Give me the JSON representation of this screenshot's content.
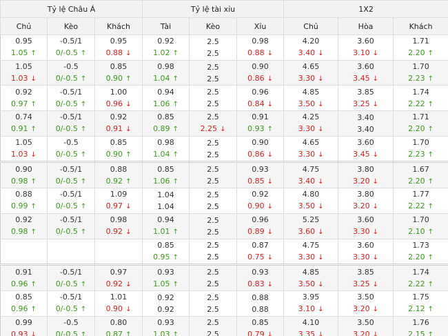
{
  "header": {
    "groups": [
      "Tỷ lệ Châu Á",
      "Tỷ lệ tài xỉu",
      "1X2"
    ],
    "columns": [
      "Chủ",
      "Kèo",
      "Khách",
      "Tài",
      "Kèo",
      "Xỉu",
      "Chủ",
      "Hòa",
      "Khách"
    ]
  },
  "rows": [
    [
      {
        "top": "0.95",
        "bottom": "1.05",
        "trend": "up"
      },
      {
        "top": "-0.5/1",
        "bottom": "0/-0.5",
        "trend": "up"
      },
      {
        "top": "0.95",
        "bottom": "0.88",
        "trend": "down"
      },
      {
        "top": "0.92",
        "bottom": "1.02",
        "trend": "up"
      },
      {
        "top": "2.5",
        "bottom": "2.5"
      },
      {
        "top": "0.98",
        "bottom": "0.88",
        "trend": "down"
      },
      {
        "top": "4.20",
        "bottom": "3.40",
        "trend": "down"
      },
      {
        "top": "3.60",
        "bottom": "3.10",
        "trend": "down"
      },
      {
        "top": "1.71",
        "bottom": "2.20",
        "trend": "up"
      }
    ],
    [
      {
        "top": "1.05",
        "bottom": "1.03",
        "trend": "down"
      },
      {
        "top": "-0.5",
        "bottom": "0/-0.5",
        "trend": "up"
      },
      {
        "top": "0.85",
        "bottom": "0.90",
        "trend": "up"
      },
      {
        "top": "0.98",
        "bottom": "1.04",
        "trend": "up"
      },
      {
        "top": "2.5",
        "bottom": "2.5"
      },
      {
        "top": "0.90",
        "bottom": "0.86",
        "trend": "down"
      },
      {
        "top": "4.65",
        "bottom": "3.30",
        "trend": "down"
      },
      {
        "top": "3.60",
        "bottom": "3.45",
        "trend": "down"
      },
      {
        "top": "1.70",
        "bottom": "2.23",
        "trend": "up"
      }
    ],
    [
      {
        "top": "0.92",
        "bottom": "0.97",
        "trend": "up"
      },
      {
        "top": "-0.5/1",
        "bottom": "0/-0.5",
        "trend": "up"
      },
      {
        "top": "1.00",
        "bottom": "0.96",
        "trend": "down"
      },
      {
        "top": "0.94",
        "bottom": "1.06",
        "trend": "up"
      },
      {
        "top": "2.5",
        "bottom": "2.5"
      },
      {
        "top": "0.96",
        "bottom": "0.84",
        "trend": "down"
      },
      {
        "top": "4.85",
        "bottom": "3.50",
        "trend": "down"
      },
      {
        "top": "3.85",
        "bottom": "3.25",
        "trend": "down"
      },
      {
        "top": "1.74",
        "bottom": "2.22",
        "trend": "up"
      }
    ],
    [
      {
        "top": "0.74",
        "bottom": "0.91",
        "trend": "up"
      },
      {
        "top": "-0.5/1",
        "bottom": "0/-0.5",
        "trend": "up"
      },
      {
        "top": "0.92",
        "bottom": "0.91",
        "trend": "down"
      },
      {
        "top": "0.85",
        "bottom": "0.89",
        "trend": "up"
      },
      {
        "top": "2.5",
        "bottom": "2.25",
        "trend": "down"
      },
      {
        "top": "0.91",
        "bottom": "0.93",
        "trend": "up"
      },
      {
        "top": "4.25",
        "bottom": "3.30",
        "trend": "down"
      },
      {
        "top": "3.40",
        "bottom": "3.40"
      },
      {
        "top": "1.71",
        "bottom": "2.20",
        "trend": "up"
      }
    ],
    [
      {
        "top": "1.05",
        "bottom": "1.03",
        "trend": "down"
      },
      {
        "top": "-0.5",
        "bottom": "0/-0.5",
        "trend": "up"
      },
      {
        "top": "0.85",
        "bottom": "0.90",
        "trend": "up"
      },
      {
        "top": "0.98",
        "bottom": "1.04",
        "trend": "up"
      },
      {
        "top": "2.5",
        "bottom": "2.5"
      },
      {
        "top": "0.90",
        "bottom": "0.86",
        "trend": "down"
      },
      {
        "top": "4.65",
        "bottom": "3.30",
        "trend": "down"
      },
      {
        "top": "3.60",
        "bottom": "3.45",
        "trend": "down"
      },
      {
        "top": "1.70",
        "bottom": "2.23",
        "trend": "up"
      }
    ],
    [
      {
        "top": "0.90",
        "bottom": "0.98",
        "trend": "up"
      },
      {
        "top": "-0.5/1",
        "bottom": "0/-0.5",
        "trend": "up"
      },
      {
        "top": "0.88",
        "bottom": "0.92",
        "trend": "up"
      },
      {
        "top": "0.85",
        "bottom": "1.06",
        "trend": "up"
      },
      {
        "top": "2.5",
        "bottom": "2.5"
      },
      {
        "top": "0.93",
        "bottom": "0.85",
        "trend": "down"
      },
      {
        "top": "4.75",
        "bottom": "3.40",
        "trend": "down"
      },
      {
        "top": "3.80",
        "bottom": "3.20",
        "trend": "down"
      },
      {
        "top": "1.67",
        "bottom": "2.20",
        "trend": "up"
      }
    ],
    [
      {
        "top": "0.88",
        "bottom": "0.99",
        "trend": "up"
      },
      {
        "top": "-0.5/1",
        "bottom": "0/-0.5",
        "trend": "up"
      },
      {
        "top": "1.09",
        "bottom": "0.97",
        "trend": "down"
      },
      {
        "top": "1.04",
        "bottom": "1.04"
      },
      {
        "top": "2.5",
        "bottom": "2.5"
      },
      {
        "top": "0.92",
        "bottom": "0.90",
        "trend": "down"
      },
      {
        "top": "4.80",
        "bottom": "3.50",
        "trend": "down"
      },
      {
        "top": "3.80",
        "bottom": "3.20",
        "trend": "down"
      },
      {
        "top": "1.77",
        "bottom": "2.22",
        "trend": "up"
      }
    ],
    [
      {
        "top": "0.92",
        "bottom": "0.98",
        "trend": "up"
      },
      {
        "top": "-0.5/1",
        "bottom": "0/-0.5",
        "trend": "up"
      },
      {
        "top": "0.98",
        "bottom": "0.92",
        "trend": "down"
      },
      {
        "top": "0.94",
        "bottom": "1.01",
        "trend": "up"
      },
      {
        "top": "2.5",
        "bottom": "2.5"
      },
      {
        "top": "0.96",
        "bottom": "0.89",
        "trend": "down"
      },
      {
        "top": "5.25",
        "bottom": "3.60",
        "trend": "down"
      },
      {
        "top": "3.60",
        "bottom": "3.30",
        "trend": "down"
      },
      {
        "top": "1.70",
        "bottom": "2.10",
        "trend": "up"
      }
    ],
    [
      null,
      null,
      null,
      {
        "top": "0.85",
        "bottom": "0.95",
        "trend": "up"
      },
      {
        "top": "2.5",
        "bottom": "2.5"
      },
      {
        "top": "0.87",
        "bottom": "0.75",
        "trend": "down"
      },
      {
        "top": "4.75",
        "bottom": "3.30",
        "trend": "down"
      },
      {
        "top": "3.60",
        "bottom": "3.30",
        "trend": "down"
      },
      {
        "top": "1.73",
        "bottom": "2.20",
        "trend": "up"
      }
    ],
    [
      {
        "top": "0.91",
        "bottom": "0.96",
        "trend": "up"
      },
      {
        "top": "-0.5/1",
        "bottom": "0/-0.5",
        "trend": "up"
      },
      {
        "top": "0.97",
        "bottom": "0.92",
        "trend": "down"
      },
      {
        "top": "0.93",
        "bottom": "1.05",
        "trend": "up"
      },
      {
        "top": "2.5",
        "bottom": "2.5"
      },
      {
        "top": "0.93",
        "bottom": "0.83",
        "trend": "down"
      },
      {
        "top": "4.85",
        "bottom": "3.50",
        "trend": "down"
      },
      {
        "top": "3.85",
        "bottom": "3.25",
        "trend": "down"
      },
      {
        "top": "1.74",
        "bottom": "2.22",
        "trend": "up"
      }
    ],
    [
      {
        "top": "0.85",
        "bottom": "0.96",
        "trend": "up"
      },
      {
        "top": "-0.5/1",
        "bottom": "0/-0.5",
        "trend": "up"
      },
      {
        "top": "1.01",
        "bottom": "0.90",
        "trend": "down"
      },
      {
        "top": "0.92",
        "bottom": "0.92"
      },
      {
        "top": "2.5",
        "bottom": "2.5"
      },
      {
        "top": "0.88",
        "bottom": "0.88"
      },
      {
        "top": "3.95",
        "bottom": "3.10",
        "trend": "down"
      },
      {
        "top": "3.50",
        "bottom": "3.20",
        "trend": "down"
      },
      {
        "top": "1.75",
        "bottom": "2.12",
        "trend": "up"
      }
    ],
    [
      {
        "top": "0.99",
        "bottom": "0.93",
        "trend": "down"
      },
      {
        "top": "-0.5",
        "bottom": "0/-0.5",
        "trend": "up"
      },
      {
        "top": "0.80",
        "bottom": "0.87",
        "trend": "up"
      },
      {
        "top": "0.93",
        "bottom": "1.03",
        "trend": "up"
      },
      {
        "top": "2.5",
        "bottom": "2.5"
      },
      {
        "top": "0.85",
        "bottom": "0.79",
        "trend": "down"
      },
      {
        "top": "4.10",
        "bottom": "3.35",
        "trend": "down"
      },
      {
        "top": "3.50",
        "bottom": "3.20",
        "trend": "down"
      },
      {
        "top": "1.76",
        "bottom": "2.15",
        "trend": "up"
      }
    ]
  ]
}
